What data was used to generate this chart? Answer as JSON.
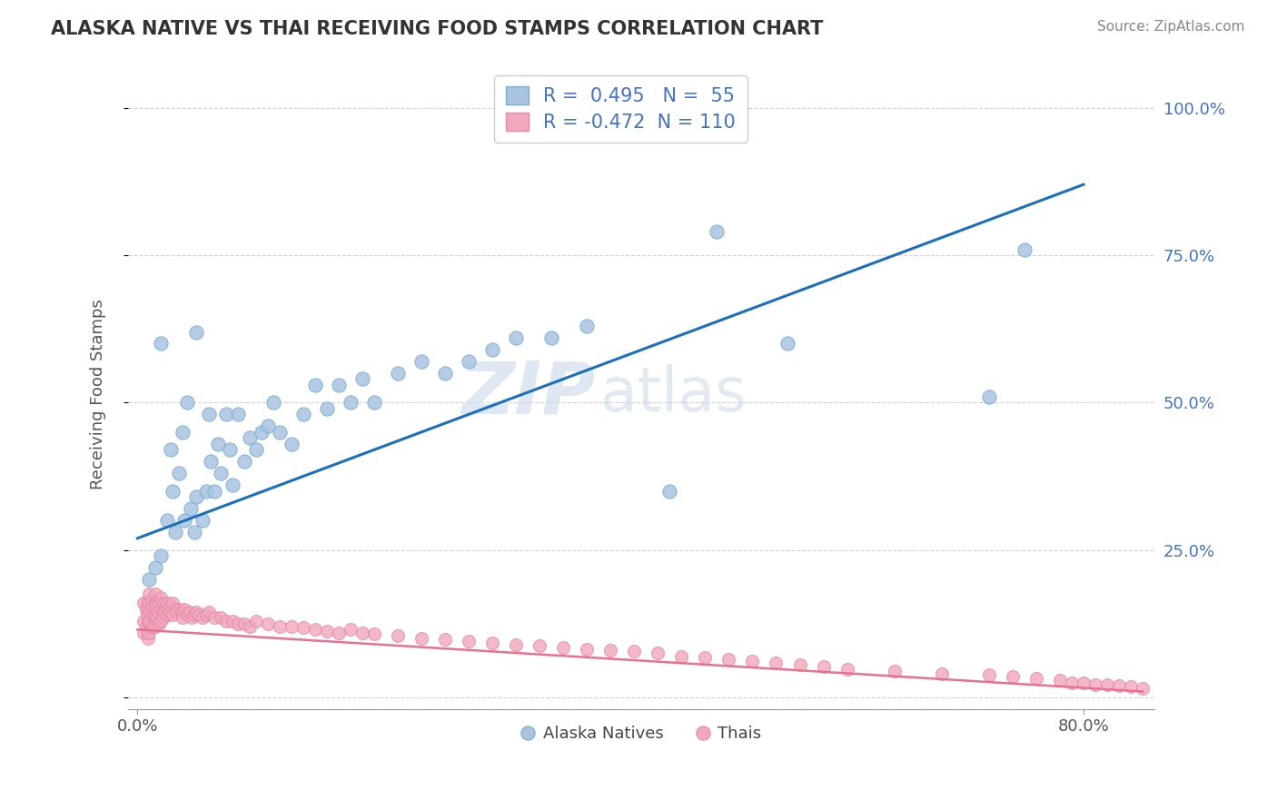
{
  "title": "ALASKA NATIVE VS THAI RECEIVING FOOD STAMPS CORRELATION CHART",
  "source": "Source: ZipAtlas.com",
  "ylabel": "Receiving Food Stamps",
  "blue_R": 0.495,
  "blue_N": 55,
  "pink_R": -0.472,
  "pink_N": 110,
  "blue_color": "#aac4e0",
  "pink_color": "#f0a8bc",
  "blue_edge_color": "#7aafd4",
  "pink_edge_color": "#e888a8",
  "blue_line_color": "#1a6fbd",
  "pink_line_color": "#e87090",
  "legend_blue_label": "Alaska Natives",
  "legend_pink_label": "Thais",
  "blue_x": [
    0.01,
    0.015,
    0.02,
    0.02,
    0.025,
    0.028,
    0.03,
    0.032,
    0.035,
    0.038,
    0.04,
    0.042,
    0.045,
    0.048,
    0.05,
    0.05,
    0.055,
    0.058,
    0.06,
    0.062,
    0.065,
    0.068,
    0.07,
    0.075,
    0.078,
    0.08,
    0.085,
    0.09,
    0.095,
    0.1,
    0.105,
    0.11,
    0.115,
    0.12,
    0.13,
    0.14,
    0.15,
    0.16,
    0.17,
    0.18,
    0.19,
    0.2,
    0.22,
    0.24,
    0.26,
    0.28,
    0.3,
    0.32,
    0.35,
    0.38,
    0.45,
    0.49,
    0.55,
    0.72,
    0.75
  ],
  "blue_y": [
    0.2,
    0.22,
    0.6,
    0.24,
    0.3,
    0.42,
    0.35,
    0.28,
    0.38,
    0.45,
    0.3,
    0.5,
    0.32,
    0.28,
    0.34,
    0.62,
    0.3,
    0.35,
    0.48,
    0.4,
    0.35,
    0.43,
    0.38,
    0.48,
    0.42,
    0.36,
    0.48,
    0.4,
    0.44,
    0.42,
    0.45,
    0.46,
    0.5,
    0.45,
    0.43,
    0.48,
    0.53,
    0.49,
    0.53,
    0.5,
    0.54,
    0.5,
    0.55,
    0.57,
    0.55,
    0.57,
    0.59,
    0.61,
    0.61,
    0.63,
    0.35,
    0.79,
    0.6,
    0.51,
    0.76
  ],
  "pink_x": [
    0.005,
    0.005,
    0.005,
    0.007,
    0.007,
    0.008,
    0.008,
    0.008,
    0.009,
    0.009,
    0.01,
    0.01,
    0.01,
    0.01,
    0.01,
    0.012,
    0.012,
    0.013,
    0.013,
    0.014,
    0.015,
    0.015,
    0.015,
    0.015,
    0.016,
    0.016,
    0.017,
    0.018,
    0.018,
    0.02,
    0.02,
    0.02,
    0.021,
    0.022,
    0.022,
    0.023,
    0.024,
    0.025,
    0.025,
    0.026,
    0.027,
    0.028,
    0.03,
    0.03,
    0.032,
    0.033,
    0.035,
    0.037,
    0.038,
    0.04,
    0.042,
    0.044,
    0.046,
    0.048,
    0.05,
    0.052,
    0.055,
    0.058,
    0.06,
    0.065,
    0.07,
    0.075,
    0.08,
    0.085,
    0.09,
    0.095,
    0.1,
    0.11,
    0.12,
    0.13,
    0.14,
    0.15,
    0.16,
    0.17,
    0.18,
    0.19,
    0.2,
    0.22,
    0.24,
    0.26,
    0.28,
    0.3,
    0.32,
    0.34,
    0.36,
    0.38,
    0.4,
    0.42,
    0.44,
    0.46,
    0.48,
    0.5,
    0.52,
    0.54,
    0.56,
    0.58,
    0.6,
    0.64,
    0.68,
    0.72,
    0.74,
    0.76,
    0.78,
    0.79,
    0.8,
    0.81,
    0.82,
    0.83,
    0.84,
    0.85
  ],
  "pink_y": [
    0.16,
    0.13,
    0.11,
    0.15,
    0.12,
    0.16,
    0.14,
    0.11,
    0.13,
    0.1,
    0.175,
    0.16,
    0.145,
    0.13,
    0.11,
    0.165,
    0.14,
    0.155,
    0.12,
    0.14,
    0.175,
    0.16,
    0.14,
    0.12,
    0.155,
    0.135,
    0.145,
    0.16,
    0.125,
    0.17,
    0.15,
    0.13,
    0.145,
    0.16,
    0.135,
    0.145,
    0.155,
    0.16,
    0.14,
    0.15,
    0.145,
    0.155,
    0.16,
    0.14,
    0.15,
    0.145,
    0.15,
    0.145,
    0.135,
    0.15,
    0.14,
    0.145,
    0.135,
    0.14,
    0.145,
    0.14,
    0.135,
    0.14,
    0.145,
    0.135,
    0.135,
    0.13,
    0.13,
    0.125,
    0.125,
    0.12,
    0.13,
    0.125,
    0.12,
    0.12,
    0.118,
    0.115,
    0.112,
    0.11,
    0.115,
    0.11,
    0.108,
    0.105,
    0.1,
    0.098,
    0.095,
    0.092,
    0.09,
    0.088,
    0.085,
    0.082,
    0.08,
    0.078,
    0.075,
    0.07,
    0.068,
    0.065,
    0.062,
    0.058,
    0.055,
    0.052,
    0.048,
    0.045,
    0.04,
    0.038,
    0.035,
    0.032,
    0.03,
    0.025,
    0.025,
    0.022,
    0.022,
    0.02,
    0.018,
    0.015
  ],
  "blue_trend_x": [
    0.0,
    0.8
  ],
  "blue_trend_y": [
    0.27,
    0.87
  ],
  "pink_trend_x": [
    0.0,
    0.85
  ],
  "pink_trend_y": [
    0.115,
    0.01
  ],
  "xlim": [
    -0.008,
    0.86
  ],
  "ylim": [
    -0.02,
    1.05
  ],
  "xtick_pos": [
    0.0,
    0.8
  ],
  "xtick_labels": [
    "0.0%",
    "80.0%"
  ],
  "ytick_pos": [
    0.0,
    0.25,
    0.5,
    0.75,
    1.0
  ],
  "ytick_labels_right": [
    "",
    "25.0%",
    "50.0%",
    "75.0%",
    "100.0%"
  ],
  "grid_color": "#cccccc",
  "spine_color": "#999999",
  "title_color": "#333333",
  "source_color": "#888888",
  "ylabel_color": "#555555",
  "tick_label_color_right": "#4472c4",
  "tick_label_color_bottom": "#555555",
  "watermark_text": "ZIP",
  "watermark_text2": "atlas",
  "background": "#ffffff"
}
